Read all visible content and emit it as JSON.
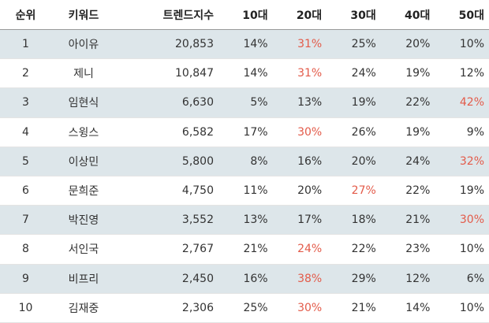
{
  "headers": {
    "rank": "순위",
    "keyword": "키워드",
    "trend_index": "트렌드지수",
    "age10": "10대",
    "age20": "20대",
    "age30": "30대",
    "age40": "40대",
    "age50": "50대"
  },
  "highlight_color": "#e35b4a",
  "stripe_color": "#dde6ea",
  "rows": [
    {
      "rank": "1",
      "keyword": "아이유",
      "trend_index": "20,853",
      "age10": "14%",
      "age20": "31%",
      "age30": "25%",
      "age40": "20%",
      "age50": "10%",
      "max_col": "age20"
    },
    {
      "rank": "2",
      "keyword": "제니",
      "trend_index": "10,847",
      "age10": "14%",
      "age20": "31%",
      "age30": "24%",
      "age40": "19%",
      "age50": "12%",
      "max_col": "age20"
    },
    {
      "rank": "3",
      "keyword": "임현식",
      "trend_index": "6,630",
      "age10": "5%",
      "age20": "13%",
      "age30": "19%",
      "age40": "22%",
      "age50": "42%",
      "max_col": "age50"
    },
    {
      "rank": "4",
      "keyword": "스윙스",
      "trend_index": "6,582",
      "age10": "17%",
      "age20": "30%",
      "age30": "26%",
      "age40": "19%",
      "age50": "9%",
      "max_col": "age20"
    },
    {
      "rank": "5",
      "keyword": "이상민",
      "trend_index": "5,800",
      "age10": "8%",
      "age20": "16%",
      "age30": "20%",
      "age40": "24%",
      "age50": "32%",
      "max_col": "age50"
    },
    {
      "rank": "6",
      "keyword": "문희준",
      "trend_index": "4,750",
      "age10": "11%",
      "age20": "20%",
      "age30": "27%",
      "age40": "22%",
      "age50": "19%",
      "max_col": "age30"
    },
    {
      "rank": "7",
      "keyword": "박진영",
      "trend_index": "3,552",
      "age10": "13%",
      "age20": "17%",
      "age30": "18%",
      "age40": "21%",
      "age50": "30%",
      "max_col": "age50"
    },
    {
      "rank": "8",
      "keyword": "서인국",
      "trend_index": "2,767",
      "age10": "21%",
      "age20": "24%",
      "age30": "22%",
      "age40": "23%",
      "age50": "10%",
      "max_col": "age20"
    },
    {
      "rank": "9",
      "keyword": "비프리",
      "trend_index": "2,450",
      "age10": "16%",
      "age20": "38%",
      "age30": "29%",
      "age40": "12%",
      "age50": "6%",
      "max_col": "age20"
    },
    {
      "rank": "10",
      "keyword": "김재중",
      "trend_index": "2,306",
      "age10": "25%",
      "age20": "30%",
      "age30": "21%",
      "age40": "14%",
      "age50": "10%",
      "max_col": "age20"
    }
  ]
}
